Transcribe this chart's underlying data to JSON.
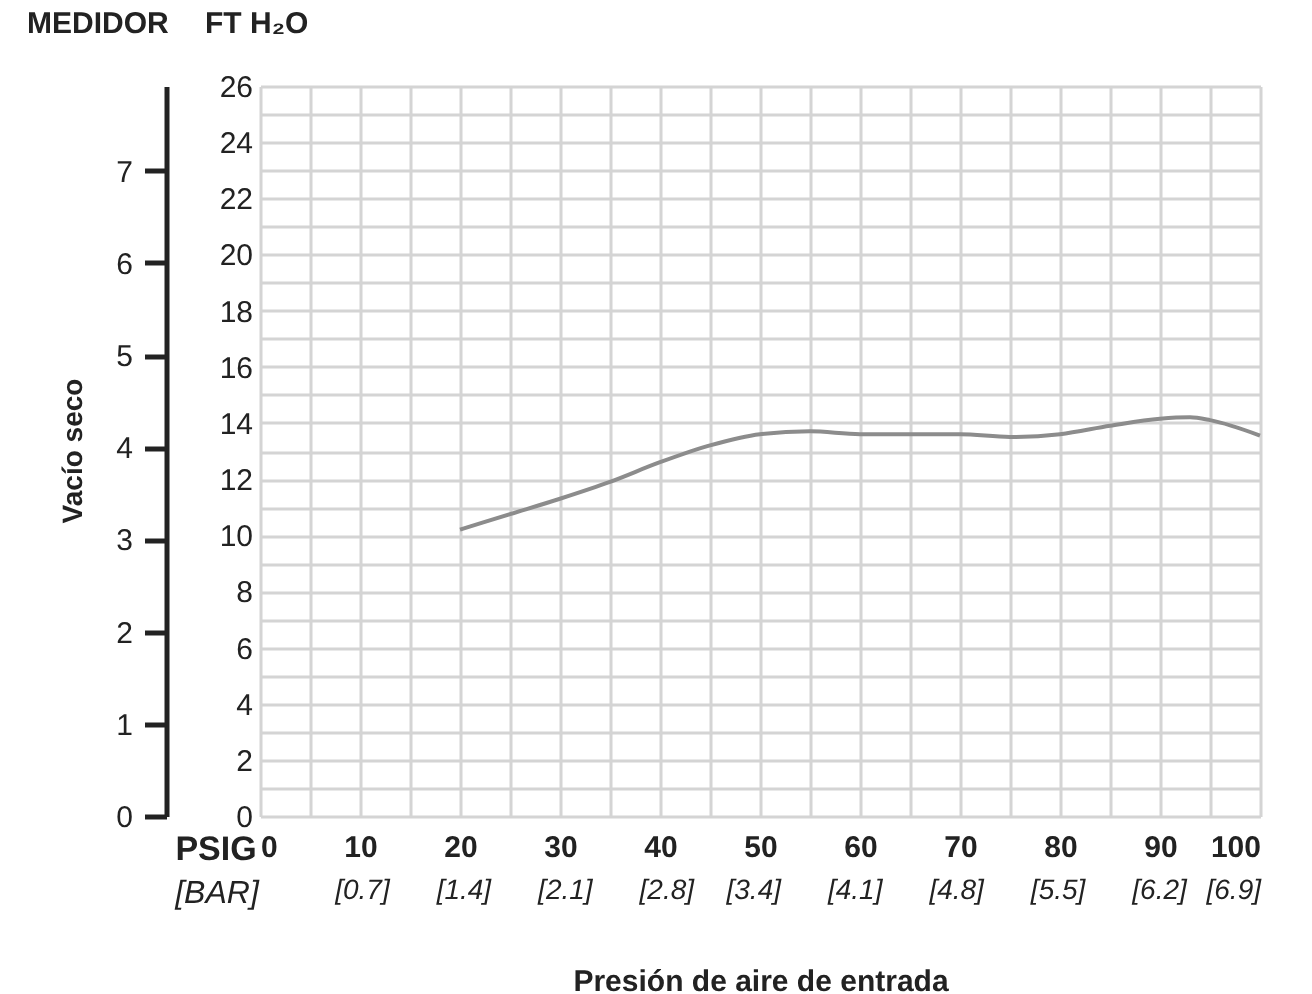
{
  "chart_data": {
    "type": "line",
    "xlabel": "Presión de aire de entrada",
    "ylabel": "FT H₂O",
    "y2label": "MEDIDOR",
    "annotations": [
      "Vacío seco",
      "PSIG"
    ],
    "x2label": "[BAR]",
    "x2lim": [
      0,
      6.9
    ],
    "x2ticks": [
      {
        "value": 0.7,
        "label": "[0.7]"
      },
      {
        "value": 1.4,
        "label": "[1.4]"
      },
      {
        "value": 2.1,
        "label": "[2.1]"
      },
      {
        "value": 2.8,
        "label": "[2.8]"
      },
      {
        "value": 3.4,
        "label": "[3.4]"
      },
      {
        "value": 4.1,
        "label": "[4.1]"
      },
      {
        "value": 4.8,
        "label": "[4.8]"
      },
      {
        "value": 5.5,
        "label": "[5.5]"
      },
      {
        "value": 6.2,
        "label": "[6.2]"
      },
      {
        "value": 6.9,
        "label": "[6.9]"
      }
    ],
    "x": [
      20,
      25,
      30,
      35,
      40,
      45,
      50,
      55,
      60,
      65,
      70,
      75,
      80,
      85,
      90,
      93,
      95,
      100
    ],
    "series": [
      {
        "color": "#8c8c8c",
        "values": [
          10.2,
          10.75,
          11.3,
          11.9,
          12.6,
          13.2,
          13.6,
          13.7,
          13.6,
          13.6,
          13.6,
          13.5,
          13.6,
          13.9,
          14.15,
          14.2,
          14.1,
          13.55
        ]
      }
    ],
    "xlim": [
      0,
      100
    ],
    "xticks": [
      0,
      {
        "value": 5,
        "label": null
      },
      10,
      {
        "value": 15,
        "label": null
      },
      20,
      {
        "value": 25,
        "label": null
      },
      30,
      {
        "value": 35,
        "label": null
      },
      40,
      {
        "value": 45,
        "label": null
      },
      50,
      {
        "value": 55,
        "label": null
      },
      60,
      {
        "value": 65,
        "label": null
      },
      70,
      {
        "value": 75,
        "label": null
      },
      80,
      {
        "value": 85,
        "label": null
      },
      90,
      {
        "value": 95,
        "label": null
      },
      100
    ],
    "ylim": [
      0,
      26
    ],
    "yticks": [
      0,
      {
        "value": 1,
        "label": null
      },
      2,
      {
        "value": 3,
        "label": null
      },
      4,
      {
        "value": 5,
        "label": null
      },
      6,
      {
        "value": 7,
        "label": null
      },
      8,
      {
        "value": 9,
        "label": null
      },
      10,
      {
        "value": 11,
        "label": null
      },
      12,
      {
        "value": 13,
        "label": null
      },
      14,
      {
        "value": 15,
        "label": null
      },
      16,
      {
        "value": 17,
        "label": null
      },
      18,
      {
        "value": 19,
        "label": null
      },
      20,
      {
        "value": 21,
        "label": null
      },
      22,
      {
        "value": 23,
        "label": null
      },
      24,
      {
        "value": 25,
        "label": null
      },
      26
    ],
    "y2lim": [
      0,
      7.92
    ],
    "y2ticks": [
      0,
      1,
      2,
      3,
      4,
      5,
      6,
      7
    ],
    "grid": true,
    "legend": false,
    "marker": "none",
    "line_style": "solid"
  }
}
